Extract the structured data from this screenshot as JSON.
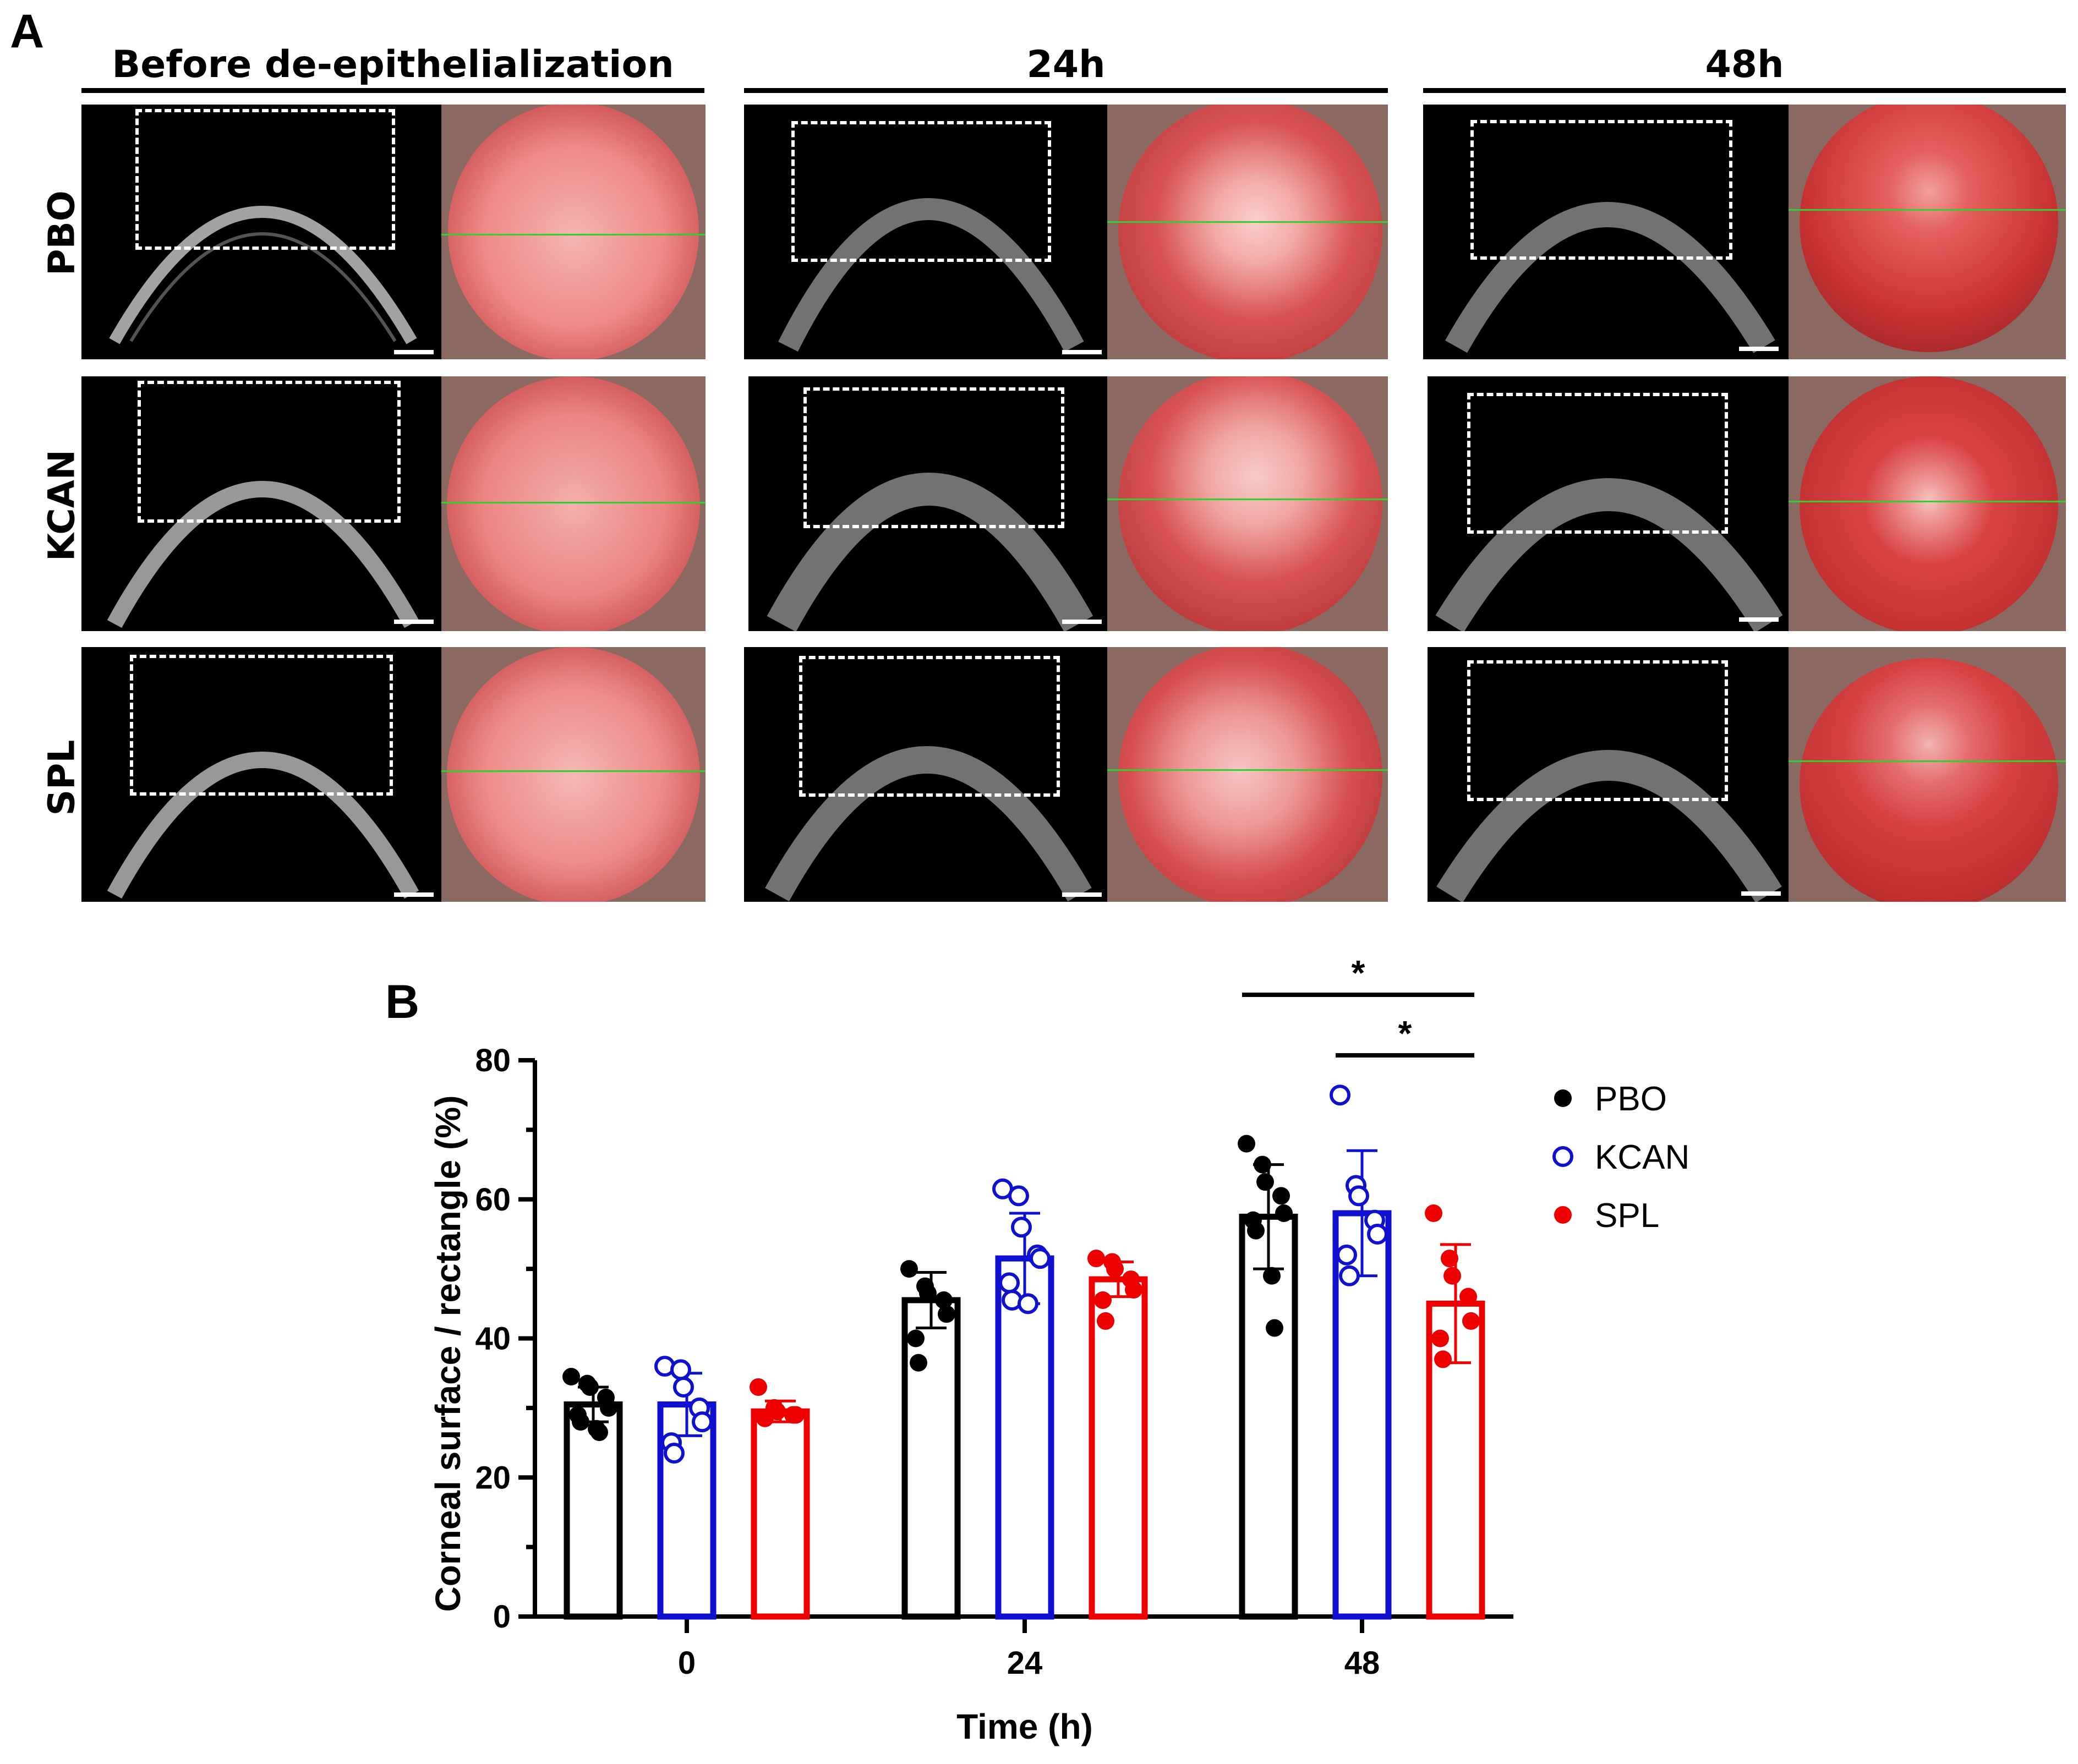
{
  "panel_a": {
    "letter": "A",
    "columns": [
      "Before de-epithelialization",
      "24h",
      "48h"
    ],
    "rows": [
      "PBO",
      "KCAN",
      "SPL"
    ]
  },
  "chart_data": {
    "panel_letter": "B",
    "type": "bar",
    "xlabel": "Time (h)",
    "ylabel": "Corneal surface / rectangle (%)",
    "categories": [
      "0",
      "24",
      "48"
    ],
    "ylim": [
      0,
      80
    ],
    "yticks": [
      0,
      20,
      40,
      60,
      80
    ],
    "series": [
      {
        "name": "PBO",
        "color": "#000000",
        "marker": "filled",
        "values": [
          30.5,
          45.5,
          57.5
        ],
        "sd": [
          2.5,
          4.0,
          7.5
        ],
        "points": [
          [
            34.5,
            33.5,
            33.0,
            31.5,
            30.0,
            29.0,
            28.0,
            27.0,
            26.5
          ],
          [
            50.0,
            47.5,
            46.5,
            45.5,
            43.5,
            40.0,
            36.5
          ],
          [
            68.0,
            65.0,
            62.5,
            60.5,
            58.0,
            57.0,
            55.5,
            49.0,
            41.5
          ]
        ]
      },
      {
        "name": "KCAN",
        "color": "#1010d0",
        "marker": "open",
        "values": [
          30.5,
          51.5,
          58.0
        ],
        "sd": [
          4.5,
          6.5,
          9.0
        ],
        "points": [
          [
            36.0,
            35.5,
            33.0,
            30.0,
            28.0,
            25.0,
            23.5
          ],
          [
            61.5,
            60.5,
            56.0,
            52.0,
            51.5,
            48.0,
            45.5,
            45.0
          ],
          [
            75.0,
            62.0,
            60.5,
            57.0,
            55.0,
            52.0,
            49.0
          ]
        ]
      },
      {
        "name": "SPL",
        "color": "#ee0000",
        "marker": "filled",
        "values": [
          29.5,
          48.5,
          45.0
        ],
        "sd": [
          1.5,
          2.5,
          8.5
        ],
        "points": [
          [
            33.0,
            30.0,
            29.5,
            29.0,
            29.0,
            28.5
          ],
          [
            51.5,
            51.0,
            50.0,
            48.5,
            47.0,
            45.5,
            42.5
          ],
          [
            58.0,
            51.5,
            49.0,
            46.0,
            42.5,
            40.0,
            37.0
          ]
        ]
      }
    ],
    "significance": [
      {
        "from": "PBO",
        "to": "SPL",
        "category": "48",
        "label": "*"
      },
      {
        "from": "KCAN",
        "to": "SPL",
        "category": "48",
        "label": "*"
      }
    ]
  }
}
